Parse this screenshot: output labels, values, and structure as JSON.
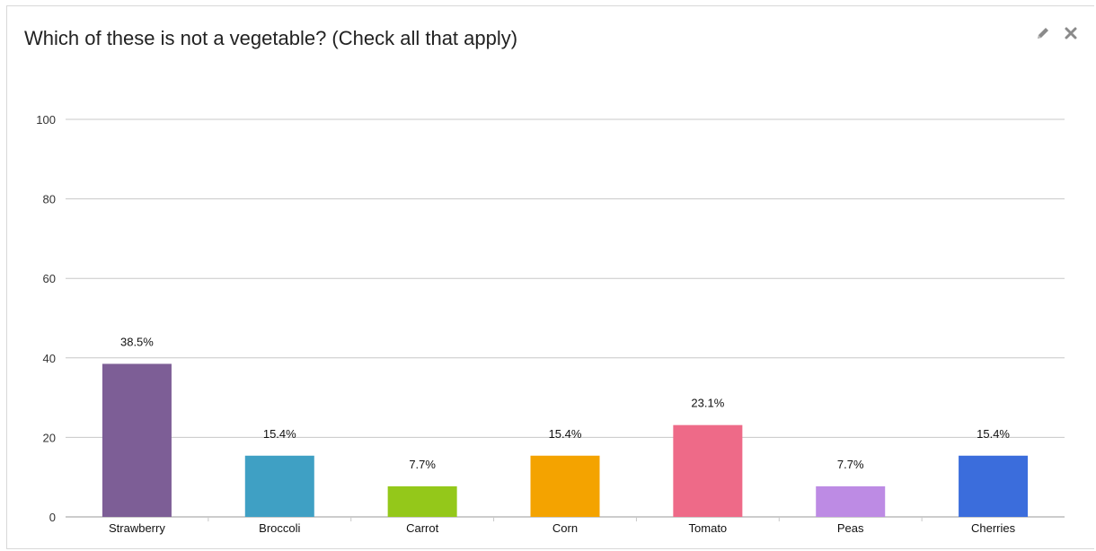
{
  "header": {
    "title": "Which of these is not a vegetable? (Check all that apply)",
    "edit_icon": "pencil-icon",
    "close_icon": "close-icon"
  },
  "chart_data": {
    "type": "bar",
    "title": "Which of these is not a vegetable? (Check all that apply)",
    "xlabel": "",
    "ylabel": "",
    "ylim": [
      0,
      100
    ],
    "yticks": [
      0,
      20,
      40,
      60,
      80,
      100
    ],
    "grid": true,
    "categories": [
      "Strawberry",
      "Broccoli",
      "Carrot",
      "Corn",
      "Tomato",
      "Peas",
      "Cherries"
    ],
    "values": [
      38.5,
      15.4,
      7.7,
      15.4,
      23.1,
      7.7,
      15.4
    ],
    "value_labels": [
      "38.5%",
      "15.4%",
      "7.7%",
      "15.4%",
      "23.1%",
      "7.7%",
      "15.4%"
    ],
    "colors": [
      "#7d5e96",
      "#3fa0c4",
      "#94c81a",
      "#f4a300",
      "#ee6a88",
      "#bd8be4",
      "#3b6ddc"
    ]
  }
}
